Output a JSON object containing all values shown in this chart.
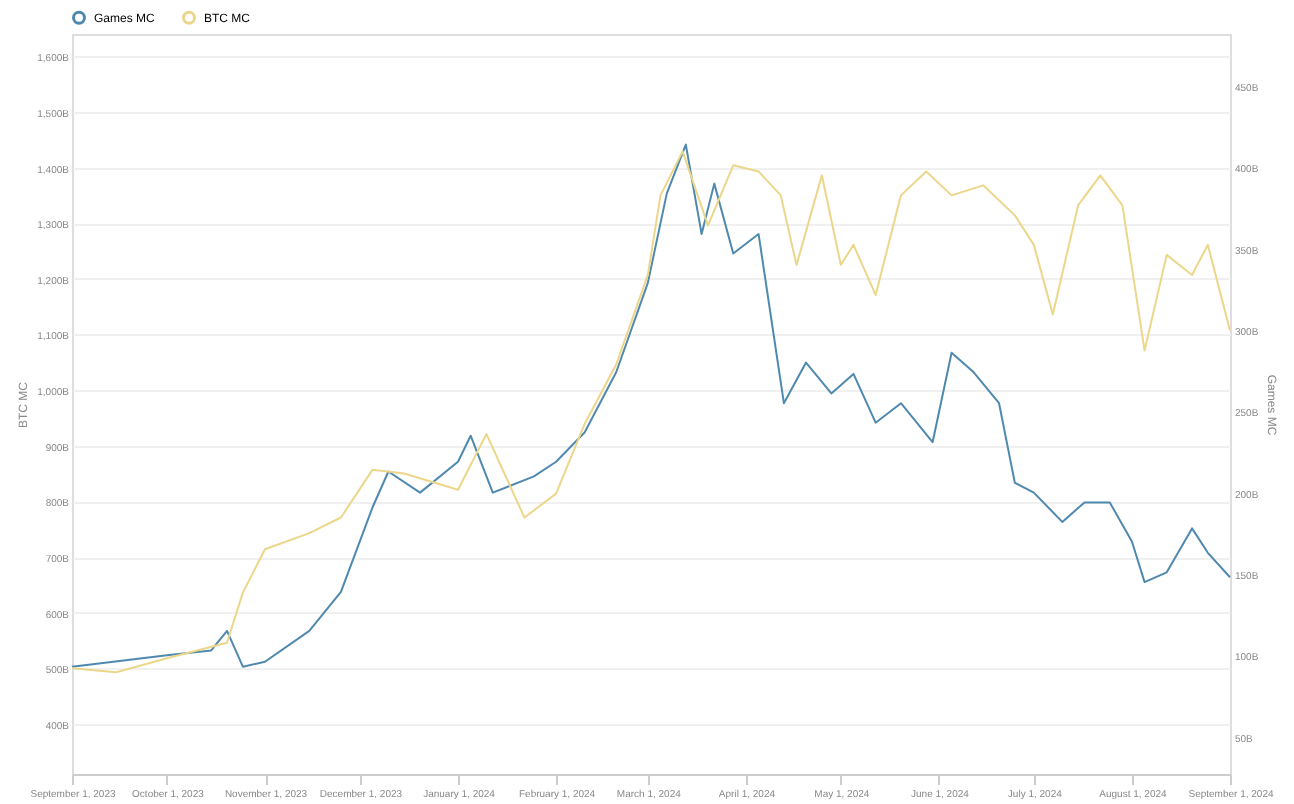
{
  "chart_data": {
    "type": "line",
    "xlabel": null,
    "ylabel": "BTC MC",
    "y2label": "Games MC",
    "xlim": [
      "2023-09-01",
      "2024-09-01"
    ],
    "xticks": [
      {
        "value": "2023-09-01",
        "label": "September 1, 2023"
      },
      {
        "value": "2023-10-01",
        "label": "October 1, 2023"
      },
      {
        "value": "2023-11-01",
        "label": "November 1, 2023"
      },
      {
        "value": "2023-12-01",
        "label": "December 1, 2023"
      },
      {
        "value": "2024-01-01",
        "label": "January 1, 2024"
      },
      {
        "value": "2024-02-01",
        "label": "February 1, 2024"
      },
      {
        "value": "2024-03-01",
        "label": "March 1, 2024"
      },
      {
        "value": "2024-04-01",
        "label": "April 1, 2024"
      },
      {
        "value": "2024-05-01",
        "label": "May 1, 2024"
      },
      {
        "value": "2024-06-01",
        "label": "June 1, 2024"
      },
      {
        "value": "2024-07-01",
        "label": "July 1, 2024"
      },
      {
        "value": "2024-08-01",
        "label": "August 1, 2024"
      },
      {
        "value": "2024-09-01",
        "label": "September 1, 2024"
      }
    ],
    "ylim": [
      310,
      1640
    ],
    "yticks": [
      {
        "value": 400,
        "label": "400B"
      },
      {
        "value": 500,
        "label": "500B"
      },
      {
        "value": 600,
        "label": "600B"
      },
      {
        "value": 700,
        "label": "700B"
      },
      {
        "value": 800,
        "label": "800B"
      },
      {
        "value": 900,
        "label": "900B"
      },
      {
        "value": 1000,
        "label": "1,000B"
      },
      {
        "value": 1100,
        "label": "1,100B"
      },
      {
        "value": 1200,
        "label": "1,200B"
      },
      {
        "value": 1300,
        "label": "1,300B"
      },
      {
        "value": 1400,
        "label": "1,400B"
      },
      {
        "value": 1500,
        "label": "1,500B"
      },
      {
        "value": 1600,
        "label": "1,600B"
      }
    ],
    "y2lim": [
      27,
      482
    ],
    "y2ticks": [
      {
        "value": 50,
        "label": "50B"
      },
      {
        "value": 100,
        "label": "100B"
      },
      {
        "value": 150,
        "label": "150B"
      },
      {
        "value": 200,
        "label": "200B"
      },
      {
        "value": 250,
        "label": "250B"
      },
      {
        "value": 300,
        "label": "300B"
      },
      {
        "value": 350,
        "label": "350B"
      },
      {
        "value": 400,
        "label": "400B"
      },
      {
        "value": 450,
        "label": "450B"
      }
    ],
    "grid": "y",
    "legend": "top left",
    "marker": "none",
    "line_style": "solid",
    "series": [
      {
        "name": "Games MC",
        "color": "#4f89b0",
        "axis": "y2",
        "x": [
          "2023-09-01",
          "2023-10-01",
          "2023-10-15",
          "2023-10-20",
          "2023-10-25",
          "2023-11-01",
          "2023-11-15",
          "2023-11-25",
          "2023-12-05",
          "2023-12-10",
          "2023-12-20",
          "2024-01-01",
          "2024-01-05",
          "2024-01-12",
          "2024-01-25",
          "2024-02-01",
          "2024-02-10",
          "2024-02-20",
          "2024-03-01",
          "2024-03-07",
          "2024-03-13",
          "2024-03-18",
          "2024-03-22",
          "2024-03-28",
          "2024-04-05",
          "2024-04-13",
          "2024-04-20",
          "2024-04-28",
          "2024-05-05",
          "2024-05-12",
          "2024-05-20",
          "2024-05-30",
          "2024-06-05",
          "2024-06-12",
          "2024-06-20",
          "2024-06-25",
          "2024-07-01",
          "2024-07-10",
          "2024-07-17",
          "2024-07-25",
          "2024-08-01",
          "2024-08-05",
          "2024-08-12",
          "2024-08-20",
          "2024-08-25",
          "2024-09-01"
        ],
        "values": [
          93,
          100,
          103,
          115,
          93,
          96,
          115,
          139,
          191,
          213,
          200,
          219,
          235,
          200,
          210,
          219,
          237,
          274,
          329,
          384,
          414,
          359,
          390,
          347,
          359,
          255,
          280,
          261,
          273,
          243,
          255,
          231,
          286,
          274,
          255,
          206,
          200,
          182,
          194,
          194,
          170,
          145,
          151,
          178,
          163,
          148
        ]
      },
      {
        "name": "BTC MC",
        "color": "#ecd68a",
        "x": [
          "2023-09-01",
          "2023-09-15",
          "2023-10-01",
          "2023-10-20",
          "2023-10-25",
          "2023-11-01",
          "2023-11-15",
          "2023-11-25",
          "2023-12-05",
          "2023-12-15",
          "2024-01-01",
          "2024-01-10",
          "2024-01-22",
          "2024-02-01",
          "2024-02-10",
          "2024-02-20",
          "2024-03-01",
          "2024-03-05",
          "2024-03-12",
          "2024-03-20",
          "2024-03-28",
          "2024-04-05",
          "2024-04-12",
          "2024-04-17",
          "2024-04-25",
          "2024-05-01",
          "2024-05-05",
          "2024-05-12",
          "2024-05-20",
          "2024-05-28",
          "2024-06-05",
          "2024-06-15",
          "2024-06-25",
          "2024-07-01",
          "2024-07-07",
          "2024-07-15",
          "2024-07-22",
          "2024-07-29",
          "2024-08-05",
          "2024-08-12",
          "2024-08-20",
          "2024-08-25",
          "2024-09-01"
        ],
        "values": [
          500,
          493,
          518,
          546,
          636,
          714,
          743,
          771,
          857,
          850,
          821,
          921,
          771,
          814,
          939,
          1046,
          1207,
          1350,
          1429,
          1296,
          1404,
          1393,
          1350,
          1225,
          1386,
          1225,
          1261,
          1171,
          1350,
          1393,
          1350,
          1368,
          1314,
          1261,
          1136,
          1332,
          1386,
          1332,
          1071,
          1243,
          1207,
          1261,
          1107
        ]
      }
    ]
  }
}
